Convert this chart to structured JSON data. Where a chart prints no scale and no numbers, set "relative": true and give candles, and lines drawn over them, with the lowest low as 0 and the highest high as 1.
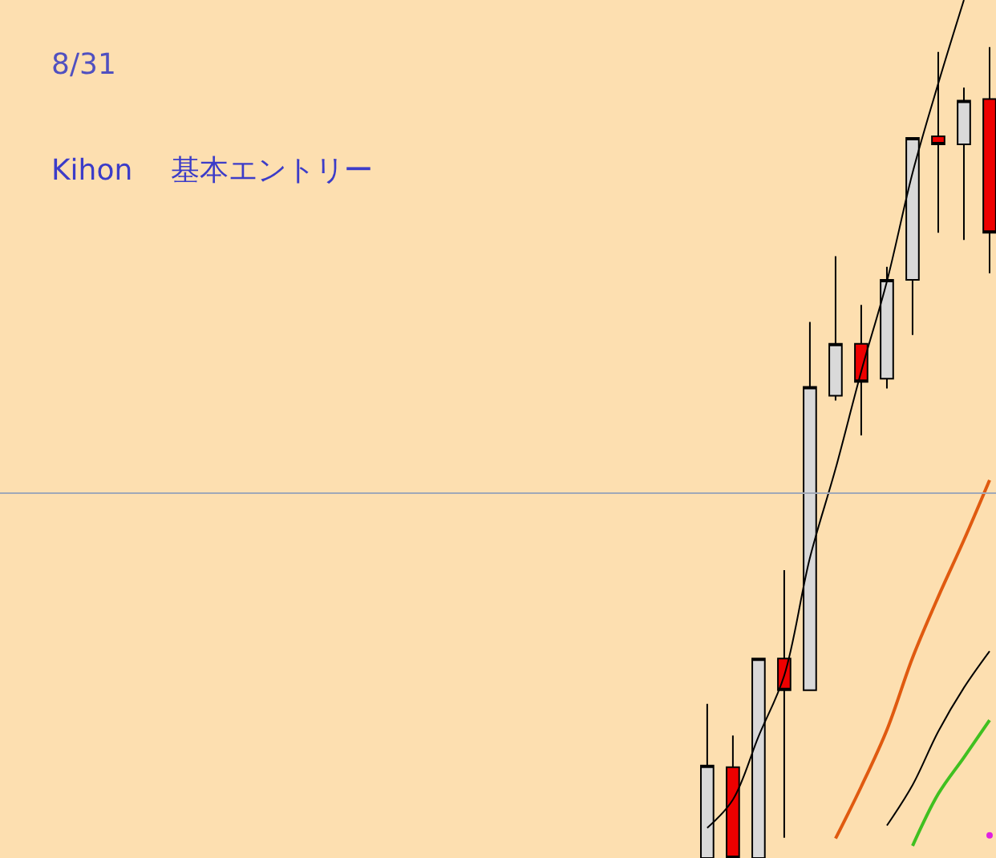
{
  "chart_data": {
    "type": "candlestick",
    "relative": true,
    "tick_labels": false,
    "annotations": [
      "8/31",
      "Kihon　 基本エントリー"
    ],
    "categories": [
      null,
      null,
      null,
      null,
      null,
      null,
      null,
      null,
      null,
      null,
      null,
      null,
      null,
      null,
      null,
      null,
      null,
      null,
      null,
      null,
      null,
      null,
      null,
      null,
      null,
      null,
      null,
      null,
      null,
      null,
      null,
      null,
      null,
      null,
      null,
      null,
      null,
      null,
      null,
      null
    ],
    "ohlc": [
      null,
      null,
      null,
      null,
      null,
      null,
      null,
      null,
      null,
      null,
      null,
      null,
      null,
      null,
      null,
      null,
      null,
      null,
      null,
      null,
      null,
      null,
      null,
      null,
      null,
      null,
      null,
      null,
      [
        0,
        0.19,
        0,
        0.114
      ],
      [
        0.112,
        0.151,
        0,
        0
      ],
      [
        0,
        0.246,
        0,
        0.246
      ],
      [
        0.246,
        0.355,
        0.025,
        0.207
      ],
      [
        0.207,
        0.661,
        0.207,
        0.581
      ],
      [
        0.57,
        0.742,
        0.564,
        0.634
      ],
      [
        0.634,
        0.682,
        0.521,
        0.587
      ],
      [
        0.591,
        0.729,
        0.579,
        0.713
      ],
      [
        0.713,
        0.888,
        0.645,
        0.888
      ],
      [
        0.89,
        0.994,
        0.771,
        0.88
      ],
      [
        0.88,
        0.95,
        0.762,
        0.934
      ],
      [
        0.936,
        1.0,
        0.721,
        0.771
      ]
    ],
    "colors": [
      null,
      null,
      null,
      null,
      null,
      null,
      null,
      null,
      null,
      null,
      null,
      null,
      null,
      null,
      null,
      null,
      null,
      null,
      null,
      null,
      null,
      null,
      null,
      null,
      null,
      null,
      null,
      null,
      "#d9d9d9",
      "#ee0000",
      "#d9d9d9",
      "#ee0000",
      "#d9d9d9",
      "#d9d9d9",
      "#ee0000",
      "#d9d9d9",
      "#d9d9d9",
      "#ee0000",
      "#d9d9d9",
      "#ee0000"
    ],
    "series": [
      {
        "type": "line",
        "color": "#000000",
        "values": [
          null,
          null,
          null,
          null,
          null,
          null,
          null,
          null,
          null,
          null,
          null,
          null,
          null,
          null,
          null,
          null,
          null,
          null,
          null,
          null,
          null,
          null,
          null,
          null,
          null,
          null,
          null,
          null,
          0.037,
          0.072,
          0.15,
          0.225,
          0.37,
          0.48,
          0.6,
          0.711,
          0.845,
          0.955,
          1.058,
          null
        ]
      },
      {
        "type": "line",
        "color": "#e05a10",
        "values": [
          null,
          null,
          null,
          null,
          null,
          null,
          null,
          null,
          null,
          null,
          null,
          null,
          null,
          null,
          null,
          null,
          null,
          null,
          null,
          null,
          null,
          null,
          null,
          null,
          null,
          null,
          null,
          null,
          null,
          null,
          null,
          null,
          null,
          0.024,
          0.088,
          0.158,
          0.247,
          0.322,
          0.392,
          0.466
        ]
      },
      {
        "type": "line",
        "color": "#000000",
        "values": [
          null,
          null,
          null,
          null,
          null,
          null,
          null,
          null,
          null,
          null,
          null,
          null,
          null,
          null,
          null,
          null,
          null,
          null,
          null,
          null,
          null,
          null,
          null,
          null,
          null,
          null,
          null,
          null,
          null,
          null,
          null,
          null,
          null,
          null,
          null,
          0.04,
          0.09,
          0.156,
          0.21,
          0.255
        ]
      },
      {
        "type": "line",
        "color": "#40c020",
        "values": [
          null,
          null,
          null,
          null,
          null,
          null,
          null,
          null,
          null,
          null,
          null,
          null,
          null,
          null,
          null,
          null,
          null,
          null,
          null,
          null,
          null,
          null,
          null,
          null,
          null,
          null,
          null,
          null,
          null,
          null,
          null,
          null,
          null,
          null,
          null,
          null,
          0.015,
          0.079,
          0.124,
          0.17
        ]
      },
      {
        "type": "line",
        "color": "#e020e0",
        "marker": "circle",
        "values": [
          null,
          null,
          null,
          null,
          null,
          null,
          null,
          null,
          null,
          null,
          null,
          null,
          null,
          null,
          null,
          null,
          null,
          null,
          null,
          null,
          null,
          null,
          null,
          null,
          null,
          null,
          null,
          null,
          null,
          null,
          null,
          null,
          null,
          null,
          null,
          null,
          null,
          null,
          null,
          0.028
        ]
      }
    ],
    "ref_lines": [
      {
        "axis": "y",
        "value": 0.45,
        "color": "#a0a8b8"
      }
    ]
  }
}
